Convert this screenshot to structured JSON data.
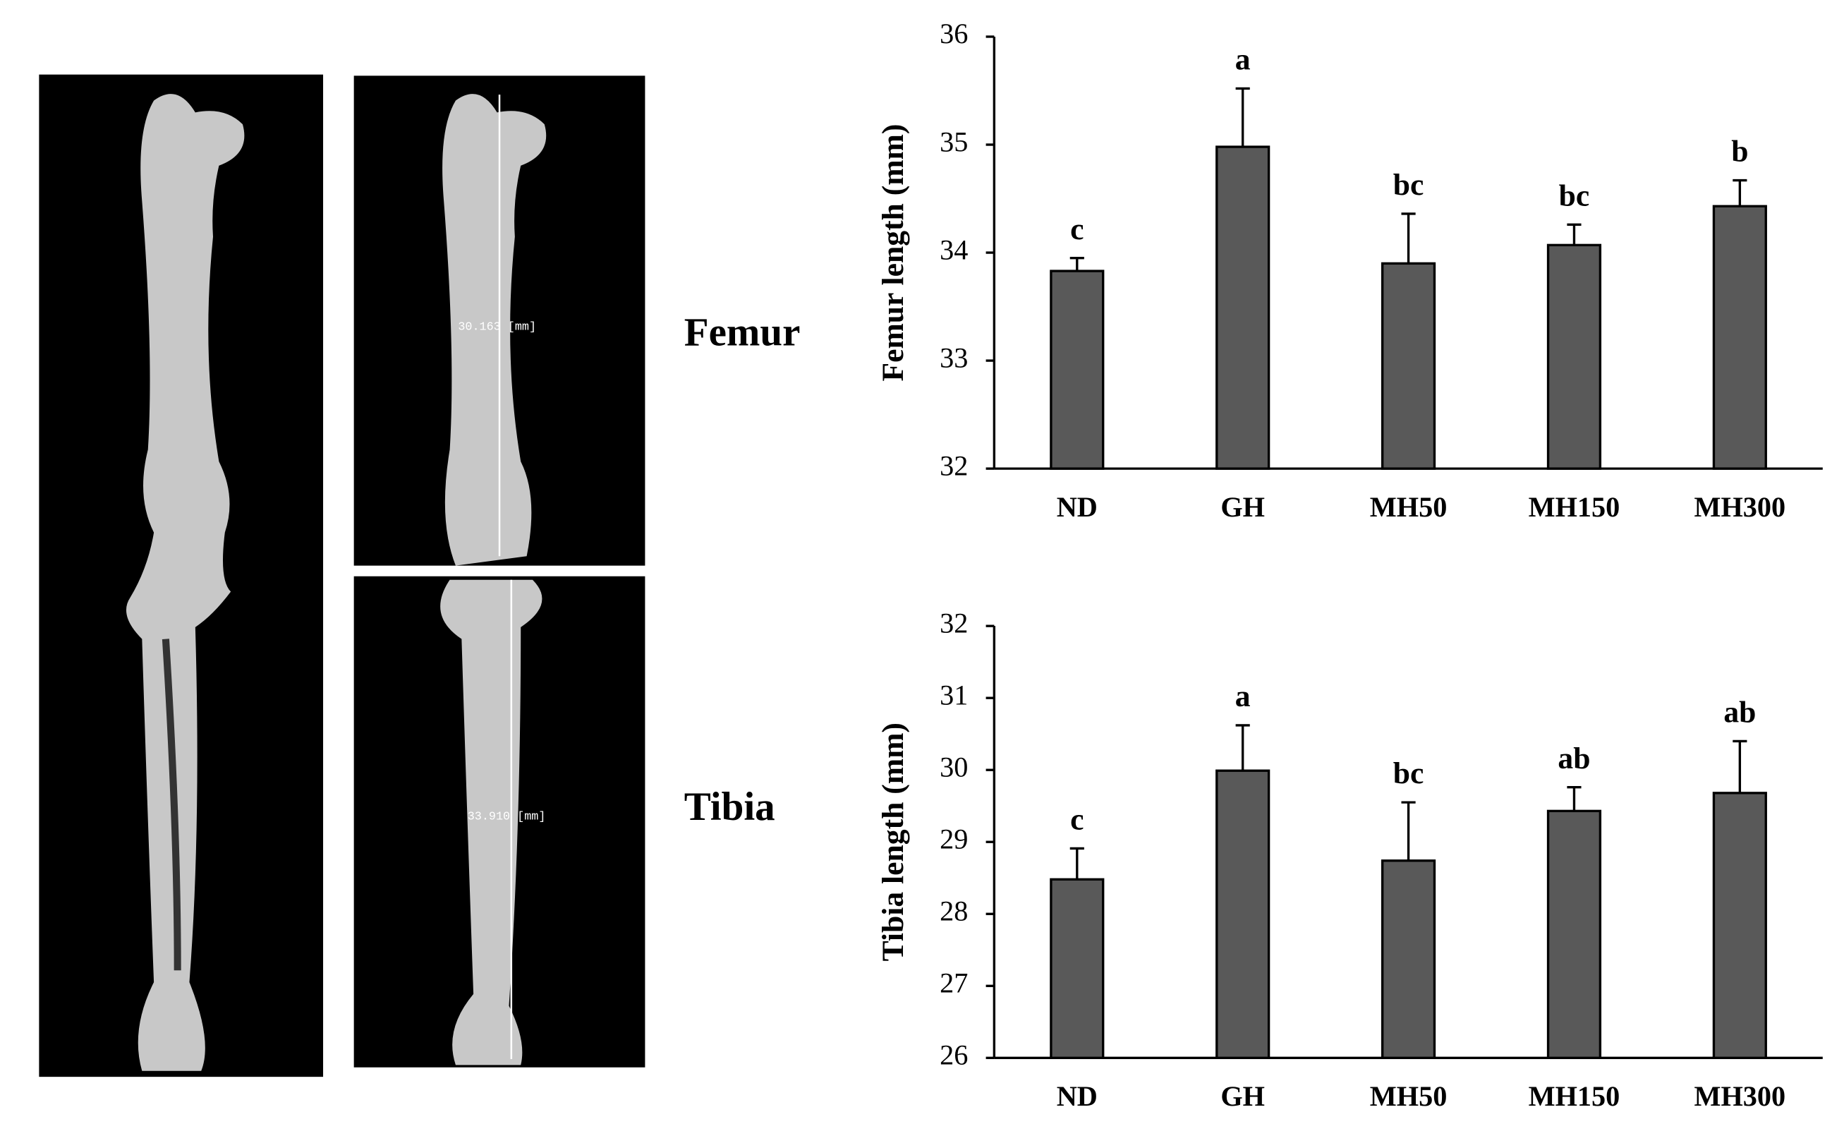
{
  "images": {
    "femur_measure": "30.163 [mm]",
    "tibia_measure": "33.910 [mm]"
  },
  "row_labels": [
    "Femur",
    "Tibia"
  ],
  "chart_data": [
    {
      "type": "bar",
      "y_label": "Femur length (mm)",
      "categories": [
        "ND",
        "GH",
        "MH50",
        "MH150",
        "MH300"
      ],
      "values": [
        33.83,
        34.98,
        33.9,
        34.07,
        34.43
      ],
      "errors": [
        0.12,
        0.54,
        0.46,
        0.19,
        0.24
      ],
      "significance_letters": [
        "c",
        "a",
        "bc",
        "bc",
        "b"
      ],
      "color": "#595959",
      "ylim": [
        32,
        36
      ],
      "yticks": [
        32,
        33,
        34,
        35,
        36
      ]
    },
    {
      "type": "bar",
      "y_label": "Tibia length (mm)",
      "categories": [
        "ND",
        "GH",
        "MH50",
        "MH150",
        "MH300"
      ],
      "values": [
        28.48,
        29.99,
        28.74,
        29.43,
        29.68
      ],
      "errors": [
        0.43,
        0.63,
        0.81,
        0.33,
        0.72
      ],
      "significance_letters": [
        "c",
        "a",
        "bc",
        "ab",
        "ab"
      ],
      "color": "#595959",
      "ylim": [
        26,
        32
      ],
      "yticks": [
        26,
        27,
        28,
        29,
        30,
        31,
        32
      ]
    }
  ]
}
